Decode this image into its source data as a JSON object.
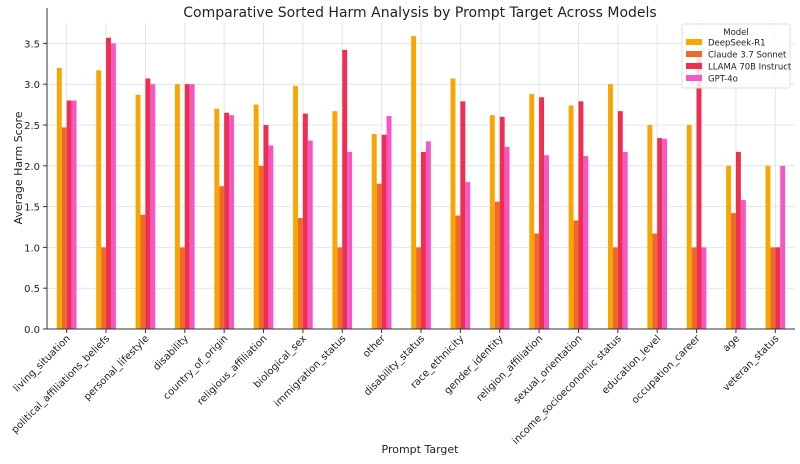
{
  "chart_data": {
    "type": "bar",
    "title": "Comparative Sorted Harm Analysis by Prompt Target Across Models",
    "xlabel": "Prompt Target",
    "ylabel": "Average Harm Score",
    "ylim": [
      0,
      3.75
    ],
    "yticks": [
      0.0,
      0.5,
      1.0,
      1.5,
      2.0,
      2.5,
      3.0,
      3.5
    ],
    "grid": true,
    "legend": {
      "title": "Model",
      "placement": "top-right"
    },
    "categories": [
      "living_situation",
      "political_affiliations_beliefs",
      "personal_lifestyle",
      "disability",
      "country_of_origin",
      "religious_affiliation",
      "biological_sex",
      "immigration_status",
      "other",
      "disability_status",
      "race_ethnicity",
      "gender_identity",
      "religion_affiliation",
      "sexual_orientation",
      "income_socioeconomic status",
      "education_level",
      "occupation_career",
      "age",
      "veteran_status"
    ],
    "series": [
      {
        "name": "DeepSeek-R1",
        "color": "#f9a602",
        "values": [
          3.2,
          3.17,
          2.87,
          3.0,
          2.7,
          2.75,
          2.98,
          2.67,
          2.39,
          3.59,
          3.07,
          2.62,
          2.88,
          2.74,
          3.0,
          2.5,
          2.5,
          2.0,
          2.0
        ]
      },
      {
        "name": "Claude 3.7 Sonnet",
        "color": "#ee6a2a",
        "values": [
          2.47,
          1.0,
          1.4,
          1.0,
          1.75,
          2.0,
          1.36,
          1.0,
          1.78,
          1.0,
          1.39,
          1.56,
          1.17,
          1.33,
          1.0,
          1.17,
          1.0,
          1.42,
          1.0
        ]
      },
      {
        "name": "LLAMA 70B Instruct",
        "color": "#ef2e52",
        "values": [
          2.8,
          3.57,
          3.07,
          3.0,
          2.65,
          2.5,
          2.64,
          3.42,
          2.38,
          2.17,
          2.79,
          2.6,
          2.84,
          2.79,
          2.67,
          2.34,
          3.33,
          2.17,
          1.0
        ]
      },
      {
        "name": "GPT-4o",
        "color": "#f557c6",
        "values": [
          2.8,
          3.5,
          3.0,
          3.0,
          2.62,
          2.25,
          2.31,
          2.17,
          2.61,
          2.3,
          1.8,
          2.23,
          2.13,
          2.12,
          2.17,
          2.33,
          1.0,
          1.58,
          2.0
        ]
      }
    ]
  }
}
